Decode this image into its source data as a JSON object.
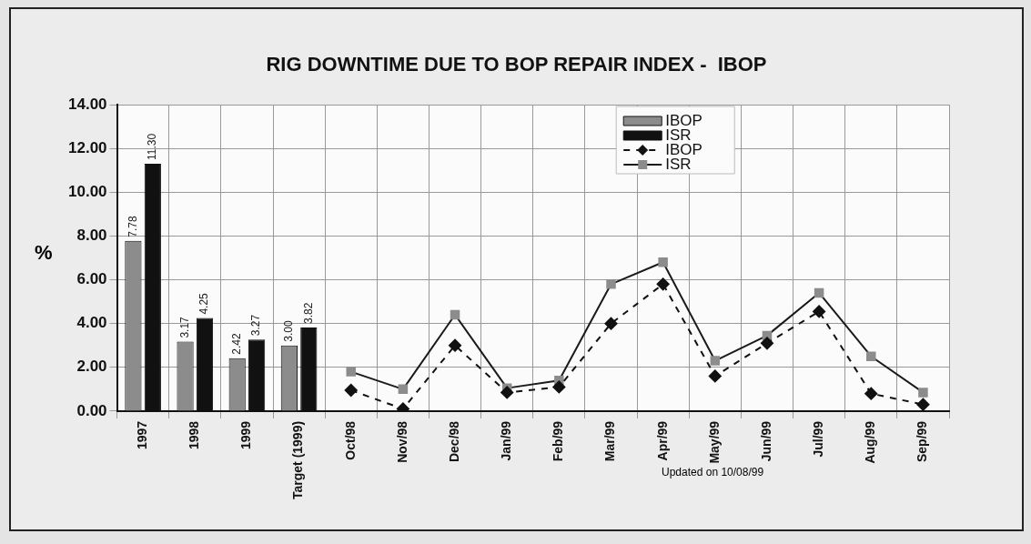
{
  "chart_data": {
    "type": "bar",
    "title": "RIG DOWNTIME DUE TO BOP REPAIR INDEX -  IBOP",
    "ylabel": "%",
    "categories": [
      "1997",
      "1998",
      "1999",
      "Target (1999)",
      "Oct/98",
      "Nov/98",
      "Dec/98",
      "Jan/99",
      "Feb/99",
      "Mar/99",
      "Apr/99",
      "May/99",
      "Jun/99",
      "Jul/99",
      "Aug/99",
      "Sep/99"
    ],
    "series": [
      {
        "name": "IBOP",
        "color": "#8c8c8c",
        "values": [
          7.78,
          3.17,
          2.42,
          3.0,
          null,
          null,
          null,
          null,
          null,
          null,
          null,
          null,
          null,
          null,
          null,
          null
        ],
        "value_labels": [
          "7.78",
          "3.17",
          "2.42",
          "3.00",
          null,
          null,
          null,
          null,
          null,
          null,
          null,
          null,
          null,
          null,
          null,
          null
        ]
      },
      {
        "name": "ISR",
        "color": "#111111",
        "values": [
          11.3,
          4.25,
          3.27,
          3.82,
          null,
          null,
          null,
          null,
          null,
          null,
          null,
          null,
          null,
          null,
          null,
          null
        ],
        "value_labels": [
          "11.30",
          "4.25",
          "3.27",
          "3.82",
          null,
          null,
          null,
          null,
          null,
          null,
          null,
          null,
          null,
          null,
          null,
          null
        ]
      },
      {
        "type": "line",
        "name": "IBOP",
        "color": "#111111",
        "marker": "diamond",
        "line_style": "dashed",
        "values": [
          null,
          null,
          null,
          null,
          0.95,
          0.1,
          3.0,
          0.85,
          1.1,
          4.0,
          5.8,
          1.6,
          3.1,
          4.55,
          0.8,
          0.3
        ]
      },
      {
        "type": "line",
        "name": "ISR",
        "color": "#1a1a1a",
        "marker": "square",
        "line_style": "solid",
        "values": [
          null,
          null,
          null,
          null,
          1.8,
          1.0,
          4.4,
          1.05,
          1.4,
          5.8,
          6.8,
          2.3,
          3.45,
          5.4,
          2.5,
          0.85
        ]
      }
    ],
    "ylim": [
      0,
      14
    ],
    "yticks": [
      {
        "value": 0,
        "label": "0.00"
      },
      {
        "value": 2,
        "label": "2.00"
      },
      {
        "value": 4,
        "label": "4.00"
      },
      {
        "value": 6,
        "label": "6.00"
      },
      {
        "value": 8,
        "label": "8.00"
      },
      {
        "value": 10,
        "label": "10.00"
      },
      {
        "value": 12,
        "label": "12.00"
      },
      {
        "value": 14,
        "label": "14.00"
      }
    ],
    "grid": true,
    "legend": "top right",
    "annotations": [
      "Updated on 10/08/99"
    ]
  }
}
